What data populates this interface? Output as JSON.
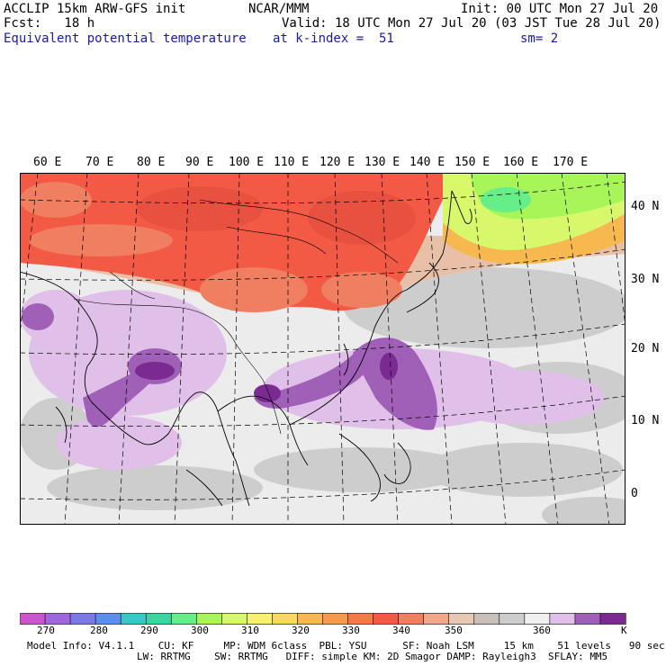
{
  "header": {
    "line1_left": "ACCLIP 15km ARW-GFS init",
    "line1_center": "NCAR/MMM",
    "line1_right": "Init: 00 UTC Mon 27 Jul 20",
    "line2_left": "Fcst:   18 h",
    "line2_right": "Valid: 18 UTC Mon 27 Jul 20 (03 JST Tue 28 Jul 20)",
    "line3_field": "Equivalent potential temperature",
    "line3_level": "at k-index =  51",
    "line3_smooth": "sm= 2"
  },
  "map": {
    "lon_labels": [
      "60 E",
      "70 E",
      "80 E",
      "90 E",
      "100 E",
      "110 E",
      "120 E",
      "130 E",
      "140 E",
      "150 E",
      "160 E",
      "170 E"
    ],
    "lat_labels": [
      "40 N",
      "30 N",
      "20 N",
      "10 N",
      "0"
    ]
  },
  "colorbar": {
    "tick_labels": [
      "270",
      "280",
      "290",
      "300",
      "310",
      "320",
      "330",
      "340",
      "350",
      "360"
    ],
    "unit": "K",
    "colors": [
      "#cc55cc",
      "#a066dd",
      "#7b78e8",
      "#5a8ff0",
      "#38c8c8",
      "#3ad6a0",
      "#66ee88",
      "#a8f55a",
      "#d6f86a",
      "#f8f070",
      "#f8d860",
      "#f8b850",
      "#f89a48",
      "#f57a45",
      "#f25a45",
      "#f07e60",
      "#f0a888",
      "#e8c8b0",
      "#c8c0b8",
      "#cccccc",
      "#f0f0f0",
      "#e0c0e8",
      "#a060b8",
      "#7a2a90"
    ]
  },
  "footer": {
    "line1": "Model Info: V4.1.1    CU: KF     MP: WDM 6class  PBL: YSU      SF: Noah LSM     15 km    51 levels   90 sec",
    "line2": "LW: RRTMG    SW: RRTMG   DIFF: simple KM: 2D Smagor DAMP: Rayleigh3  SFLAY: MM5"
  }
}
